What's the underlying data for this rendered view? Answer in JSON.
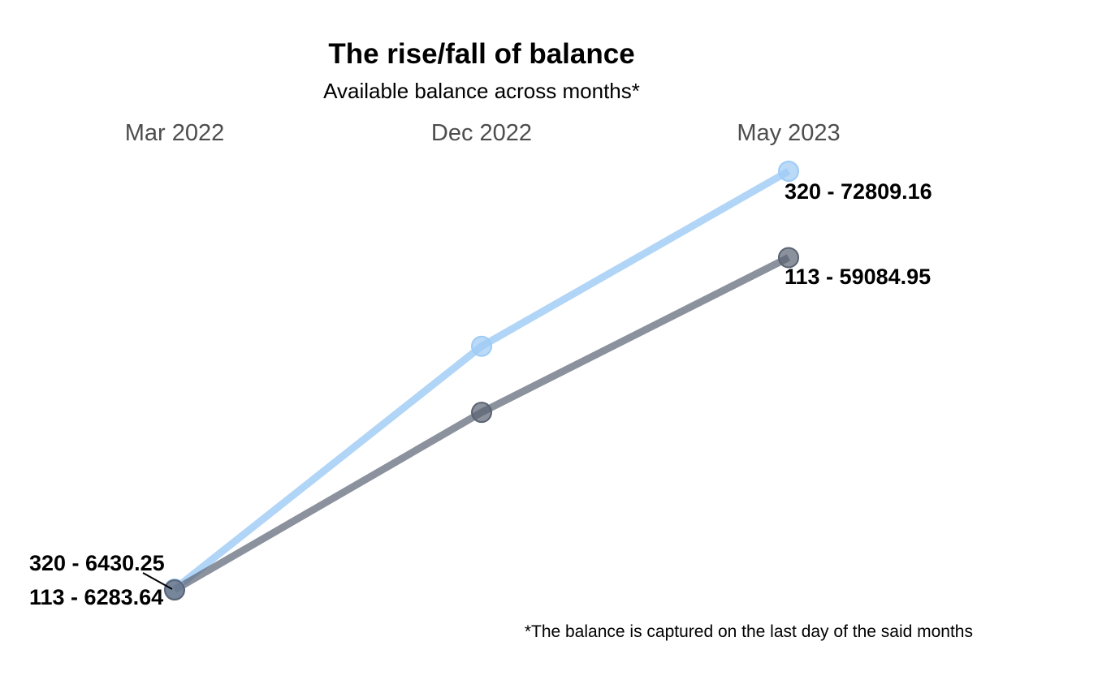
{
  "chart_data": {
    "type": "line",
    "title": "The rise/fall of balance",
    "subtitle": "Available balance across months*",
    "caption": "*The balance is captured on the last day of the said months",
    "xlabel": "",
    "ylabel": "",
    "categories": [
      "Mar 2022",
      "Dec 2022",
      "May 2023"
    ],
    "ylim": [
      6283.64,
      72809.16
    ],
    "grid": false,
    "legend": "none",
    "series": [
      {
        "name": "320",
        "color": "#9ecbf5",
        "values": [
          6430.25,
          45000,
          72809.16
        ],
        "start_label": "320 - 6430.25",
        "end_label": "320 - 72809.16"
      },
      {
        "name": "113",
        "color": "#5a6373",
        "values": [
          6283.64,
          34500,
          59084.95
        ],
        "start_label": "113 - 6283.64",
        "end_label": "113 - 59084.95"
      }
    ]
  }
}
